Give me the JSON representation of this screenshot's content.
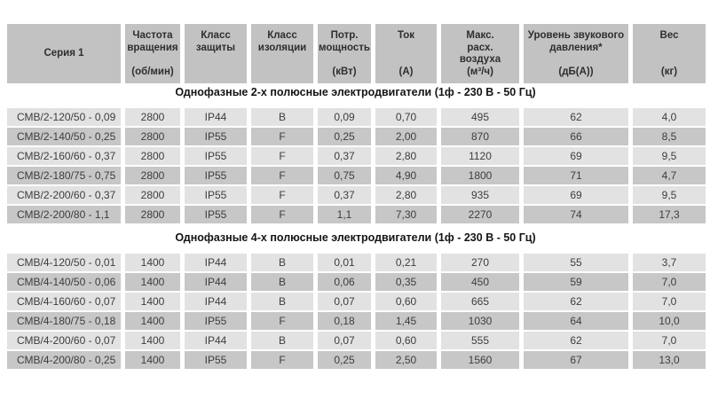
{
  "colors": {
    "header_bg": "#c2c2c2",
    "row_light_bg": "#e2e2e2",
    "row_dark_bg": "#c7c7c7",
    "background": "#ffffff",
    "text": "#3d3d3d"
  },
  "table": {
    "headers": [
      {
        "key": "series",
        "label": "Серия 1",
        "unit": ""
      },
      {
        "key": "speed",
        "label": "Частота\nвращения",
        "unit": "(об/мин)"
      },
      {
        "key": "protection",
        "label": "Класс\nзащиты",
        "unit": ""
      },
      {
        "key": "insulation",
        "label": "Класс\nизоляции",
        "unit": ""
      },
      {
        "key": "power",
        "label": "Потр.\nмощность",
        "unit": "(кВт)"
      },
      {
        "key": "current",
        "label": "Ток",
        "unit": "(А)"
      },
      {
        "key": "airflow",
        "label": "Макс.\nрасх.\nвоздуха",
        "unit": "(м³/ч)"
      },
      {
        "key": "noise",
        "label": "Уровень звукового\nдавления*",
        "unit": "(дБ(А))"
      },
      {
        "key": "weight",
        "label": "Вес",
        "unit": "(кг)"
      }
    ],
    "sections": [
      {
        "title": "Однофазные 2-х полюсные электродвигатели (1ф - 230 В - 50 Гц)",
        "rows": [
          [
            "СМВ/2-120/50 - 0,09",
            "2800",
            "IP44",
            "B",
            "0,09",
            "0,70",
            "495",
            "62",
            "4,0"
          ],
          [
            "СМВ/2-140/50 - 0,25",
            "2800",
            "IP55",
            "F",
            "0,25",
            "2,00",
            "870",
            "66",
            "8,5"
          ],
          [
            "СМВ/2-160/60 - 0,37",
            "2800",
            "IP55",
            "F",
            "0,37",
            "2,80",
            "1120",
            "69",
            "9,5"
          ],
          [
            "СМВ/2-180/75 - 0,75",
            "2800",
            "IP55",
            "F",
            "0,75",
            "4,90",
            "1800",
            "71",
            "4,7"
          ],
          [
            "СМВ/2-200/60 - 0,37",
            "2800",
            "IP55",
            "F",
            "0,37",
            "2,80",
            "935",
            "69",
            "9,5"
          ],
          [
            "СМВ/2-200/80 - 1,1",
            "2800",
            "IP55",
            "F",
            "1,1",
            "7,30",
            "2270",
            "74",
            "17,3"
          ]
        ]
      },
      {
        "title": "Однофазные 4-х полюсные электродвигатели (1ф - 230 В - 50 Гц)",
        "rows": [
          [
            "СМВ/4-120/50 - 0,01",
            "1400",
            "IP44",
            "B",
            "0,01",
            "0,21",
            "270",
            "55",
            "3,7"
          ],
          [
            "СМВ/4-140/50 - 0,06",
            "1400",
            "IP44",
            "B",
            "0,06",
            "0,35",
            "450",
            "59",
            "7,0"
          ],
          [
            "СМВ/4-160/60 - 0,07",
            "1400",
            "IP44",
            "B",
            "0,07",
            "0,60",
            "665",
            "62",
            "7,0"
          ],
          [
            "СМВ/4-180/75 - 0,18",
            "1400",
            "IP55",
            "F",
            "0,18",
            "1,45",
            "1030",
            "64",
            "10,0"
          ],
          [
            "СМВ/4-200/60 - 0,07",
            "1400",
            "IP44",
            "B",
            "0,07",
            "0,60",
            "555",
            "62",
            "7,0"
          ],
          [
            "СМВ/4-200/80 - 0,25",
            "1400",
            "IP55",
            "F",
            "0,25",
            "2,50",
            "1560",
            "67",
            "13,0"
          ]
        ]
      }
    ]
  }
}
